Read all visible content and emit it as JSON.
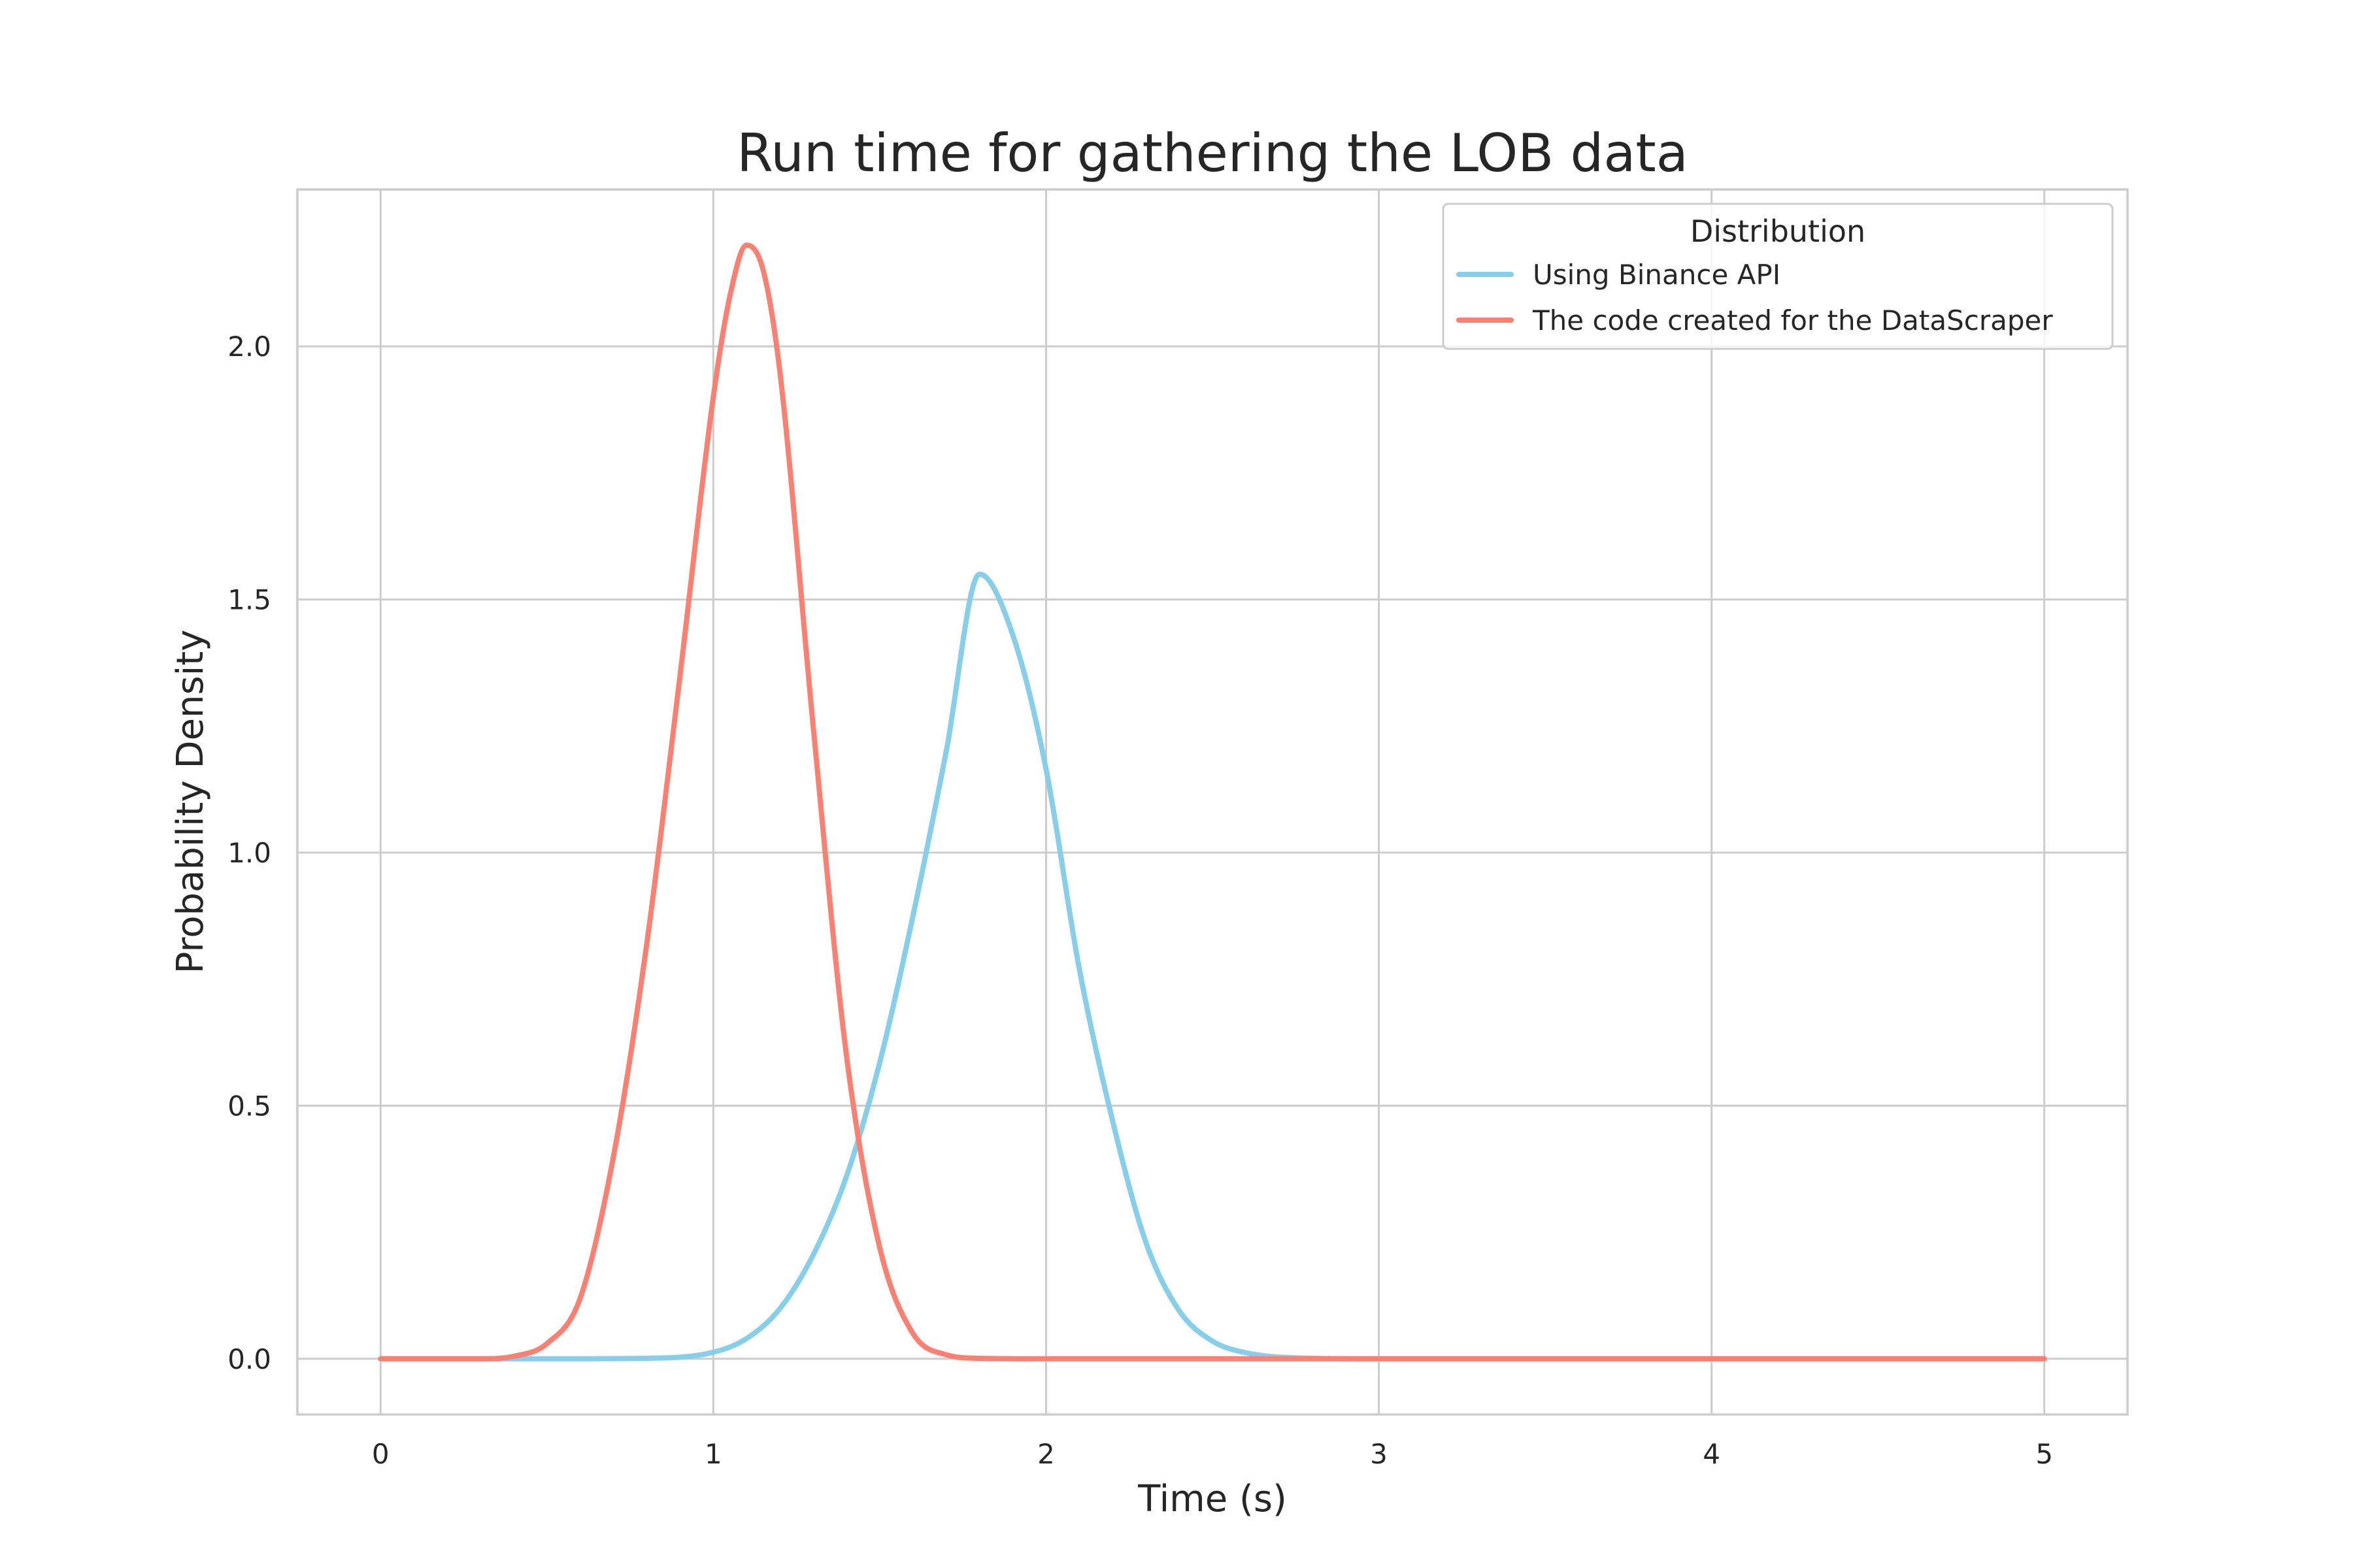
{
  "chart_data": {
    "type": "line",
    "title": "Run time for gathering the LOB data",
    "xlabel": "Time (s)",
    "ylabel": "Probability Density",
    "xlim": [
      -0.25,
      5.25
    ],
    "ylim": [
      -0.11,
      2.31
    ],
    "xticks": [
      0,
      1,
      2,
      3,
      4,
      5
    ],
    "xtick_labels": [
      "0",
      "1",
      "2",
      "3",
      "4",
      "5"
    ],
    "yticks": [
      0.0,
      0.5,
      1.0,
      1.5,
      2.0
    ],
    "ytick_labels": [
      "0.0",
      "0.5",
      "1.0",
      "1.5",
      "2.0"
    ],
    "grid": true,
    "legend": {
      "title": "Distribution",
      "placement": "top-right"
    },
    "series": [
      {
        "name": "Using Binance API",
        "color": "#87ceeb",
        "x": [
          0.0,
          0.5,
          0.8,
          1.0,
          1.1,
          1.2,
          1.3,
          1.4,
          1.5,
          1.6,
          1.7,
          1.8,
          1.9,
          2.0,
          2.1,
          2.2,
          2.3,
          2.4,
          2.5,
          2.6,
          2.8,
          3.0,
          3.5,
          4.0,
          5.0
        ],
        "y": [
          0.0,
          0.0,
          0.001,
          0.013,
          0.04,
          0.099,
          0.205,
          0.36,
          0.585,
          0.875,
          1.2,
          1.55,
          1.43,
          1.165,
          0.77,
          0.47,
          0.23,
          0.095,
          0.035,
          0.012,
          0.001,
          0.0,
          0.0,
          0.0,
          0.0
        ]
      },
      {
        "name": "The code created for the DataScraper",
        "color": "#fa8072",
        "x": [
          0.0,
          0.3,
          0.4,
          0.5,
          0.6,
          0.7,
          0.8,
          0.9,
          1.0,
          1.05,
          1.1,
          1.15,
          1.2,
          1.3,
          1.4,
          1.5,
          1.6,
          1.7,
          1.8,
          2.0,
          3.0,
          4.0,
          5.0
        ],
        "y": [
          0.0,
          0.0,
          0.005,
          0.03,
          0.12,
          0.4,
          0.82,
          1.35,
          1.9,
          2.1,
          2.2,
          2.15,
          1.95,
          1.25,
          0.6,
          0.22,
          0.05,
          0.008,
          0.001,
          0.0,
          0.0,
          0.0,
          0.0
        ]
      }
    ]
  }
}
